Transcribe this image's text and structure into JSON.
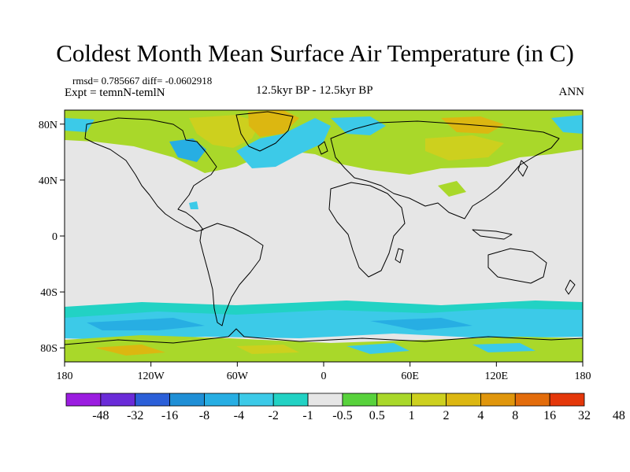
{
  "title": "Coldest Month Mean Surface Air Temperature (in C)",
  "stats": {
    "text": "rmsd= 0.785667  diff= -0.0602918"
  },
  "experiment": "Expt = temnN-temlN",
  "period": "12.5kyr BP - 12.5kyr BP",
  "season": "ANN",
  "map": {
    "projection": "cylindrical-equidistant",
    "lon_range": [
      -180,
      180
    ],
    "lat_range": [
      -90,
      90
    ],
    "x_ticks": [
      {
        "lon": -180,
        "label": "180"
      },
      {
        "lon": -120,
        "label": "120W"
      },
      {
        "lon": -60,
        "label": "60W"
      },
      {
        "lon": 0,
        "label": "0"
      },
      {
        "lon": 60,
        "label": "60E"
      },
      {
        "lon": 120,
        "label": "120E"
      },
      {
        "lon": 180,
        "label": "180"
      }
    ],
    "y_ticks": [
      {
        "lat": 80,
        "label": "80N"
      },
      {
        "lat": 40,
        "label": "40N"
      },
      {
        "lat": 0,
        "label": "0"
      },
      {
        "lat": -40,
        "label": "40S"
      },
      {
        "lat": -80,
        "label": "80S"
      }
    ],
    "background_color": "#e6e6e6",
    "coast_color": "#000000"
  },
  "colorbar": {
    "colors": [
      "#9b1de0",
      "#6a2bd8",
      "#2b5fd8",
      "#1f8fd6",
      "#27aee3",
      "#3ccae8",
      "#22d2c4",
      "#e6e6e6",
      "#58d23c",
      "#a9d82a",
      "#cdd01e",
      "#dcb711",
      "#e0960c",
      "#e36c0b",
      "#e4370a"
    ],
    "labels": [
      "-48",
      "-32",
      "-16",
      "-8",
      "-4",
      "-2",
      "-1",
      "-0.5",
      "0.5",
      "1",
      "2",
      "4",
      "8",
      "16",
      "32",
      "48"
    ]
  }
}
